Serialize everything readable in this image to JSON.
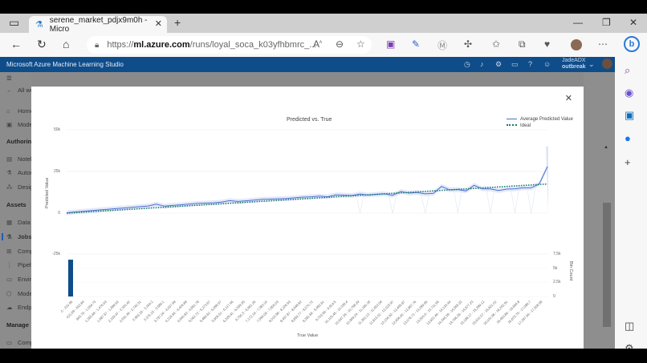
{
  "browser": {
    "tab_title": "serene_market_pdjx9m0h - Micro",
    "tab_icon": "flask-icon",
    "url_prefix": "https://",
    "url_domain": "ml.azure.com",
    "url_path": "/runs/loyal_soca_k03yfhbmrc_...",
    "new_tab_label": "+",
    "toolbar_icons": [
      "read-aloud-icon",
      "zoom-out-icon",
      "favorite-add-icon",
      "onenote-icon",
      "pen-icon",
      "m-extension-icon",
      "extensions-icon",
      "favorites-icon",
      "collections-icon",
      "health-icon",
      "profile-avatar",
      "more-icon",
      "bing-icon"
    ],
    "sidebar_icons": [
      "search-icon",
      "copilot-icon",
      "outlook-icon",
      "facebook-icon",
      "add-icon",
      "split-screen-icon",
      "settings-icon"
    ]
  },
  "app": {
    "title": "Microsoft Azure Machine Learning Studio",
    "user_name": "JadeADX",
    "user_org": "outbreak",
    "header_icons": [
      "history-icon",
      "bell-icon",
      "gear-icon",
      "feedback-icon",
      "help-icon",
      "smiley-icon"
    ]
  },
  "left_nav": {
    "back_label": "All wo",
    "items": [
      {
        "label": "Home",
        "icon": "home-icon"
      },
      {
        "label": "Mode",
        "icon": "model-catalog-icon"
      },
      {
        "section": "Authoring"
      },
      {
        "label": "Noteb",
        "icon": "notebook-icon"
      },
      {
        "label": "Autor",
        "icon": "automl-icon"
      },
      {
        "label": "Desig",
        "icon": "designer-icon"
      },
      {
        "section": "Assets"
      },
      {
        "label": "Data",
        "icon": "data-icon"
      },
      {
        "label": "Jobs",
        "icon": "jobs-icon",
        "active": true
      },
      {
        "label": "Comp",
        "icon": "components-icon"
      },
      {
        "label": "Pipeli",
        "icon": "pipelines-icon"
      },
      {
        "label": "Envir",
        "icon": "environments-icon"
      },
      {
        "label": "Mode",
        "icon": "models-icon"
      },
      {
        "label": "Endpo",
        "icon": "endpoints-icon"
      },
      {
        "section": "Manage"
      },
      {
        "label": "Compute",
        "icon": "compute-icon"
      }
    ]
  },
  "modal": {
    "close_label": "✕"
  },
  "chart_data": {
    "type": "line",
    "title": "Predicted vs. True",
    "xlabel": "True Value",
    "ylabel": "Predicted Value",
    "y2label": "Bin Count",
    "ylim": [
      -25000,
      50000
    ],
    "y_ticks": [
      "50k",
      "25k",
      "0",
      "-25k"
    ],
    "y2_ticks": [
      "7.5k",
      "5k",
      "2.5k",
      "0"
    ],
    "legend": [
      "Average Predicted Value",
      "Ideal"
    ],
    "legend_position": "top-right",
    "grid": true,
    "categories": [
      "0 - 210.95",
      "421.89 - 632.84",
      "843.79 - 1,054.73",
      "1,265.68 - 1,476.63",
      "1,687.57 - 1,898.52",
      "2,109.47 - 2,320.42",
      "2,531.36 - 2,742.31",
      "2,953.26 - 3,164.2",
      "3,375.15 - 3,586.1",
      "3,797.04 - 4,007.99",
      "4,218.94 - 4,429.88",
      "4,640.83 - 4,851.78",
      "5,062.72 - 5,273.67",
      "5,484.62 - 5,695.57",
      "5,906.51 - 6,117.46",
      "6,328.41 - 6,539.35",
      "6,750.3 - 6,961.25",
      "7,172.19 - 7,383.14",
      "7,594.09 - 7,805.03",
      "8,015.98 - 8,226.93",
      "8,437.87 - 8,648.82",
      "8,859.77 - 9,070.72",
      "9,281.66 - 9,492.61",
      "9,703.56 - 9,914.5",
      "10,125.45 - 10,336.4",
      "10,547.34 - 10,758.29",
      "10,969.24 - 11,180.18",
      "11,391.13 - 11,602.08",
      "11,813.02 - 12,023.97",
      "12,234.92 - 12,445.87",
      "12,656.81 - 12,867.76",
      "13,078.71 - 13,289.65",
      "13,500.6 - 13,711.55",
      "13,922.49 - 14,133.44",
      "14,344.39 - 14,555.33",
      "14,766.28 - 14,977.23",
      "15,188.17 - 15,399.12",
      "15,610.07 - 15,821.02",
      "16,031.96 - 16,242.91",
      "16,453.86 - 16,664.8",
      "16,875.75 - 17,086.7",
      "17,297.64 - 17,508.58"
    ],
    "series": [
      {
        "name": "Average Predicted Value",
        "color": "#4a6fd1",
        "values": [
          200,
          700,
          1100,
          1500,
          1900,
          2300,
          2700,
          3100,
          3500,
          3900,
          4300,
          5400,
          4200,
          4600,
          5000,
          5400,
          5800,
          6000,
          6200,
          6600,
          7500,
          7000,
          7400,
          7800,
          8300,
          8400,
          8600,
          8800,
          9200,
          9600,
          9800,
          10200,
          9800,
          10900,
          10800,
          10600,
          11500,
          10800,
          11300,
          11600,
          10700,
          13000,
          12000,
          12400,
          11600,
          11900,
          16000,
          14000,
          14200,
          13300,
          16700,
          14600,
          14500,
          13600,
          14400,
          14600,
          15200,
          15200,
          17500,
          28000
        ]
      },
      {
        "name": "Ideal",
        "color": "#1a7a6d",
        "style": "dotted",
        "values": [
          0,
          17508.58
        ]
      }
    ],
    "histogram": {
      "name": "Bin Count",
      "color": "#0f4d8a",
      "values": [
        6500,
        0,
        0,
        0,
        0,
        0,
        0,
        0,
        0,
        0,
        0,
        0,
        0,
        0,
        0,
        0,
        0,
        0,
        0,
        0,
        0,
        0,
        0,
        0,
        0,
        0,
        0,
        0,
        0,
        0,
        0,
        0,
        0,
        0,
        0,
        0,
        0,
        0,
        0,
        0,
        0,
        0
      ]
    }
  }
}
